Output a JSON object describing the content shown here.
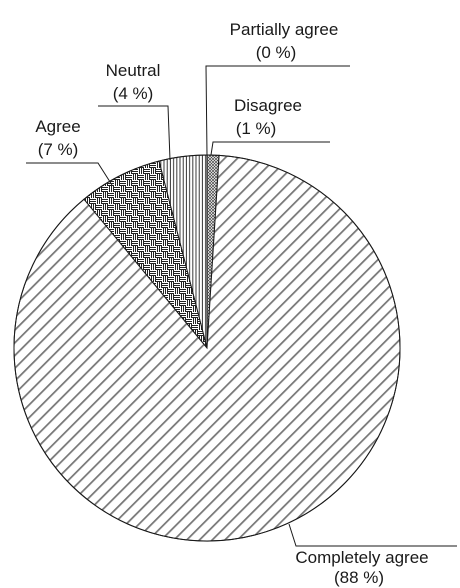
{
  "chart_data": {
    "type": "pie",
    "start": "top",
    "direction": "counterclockwise-from-disagree",
    "slices": [
      {
        "name": "Completely agree",
        "pct_label": "(88 %)",
        "value": 88,
        "pattern": "diagonal"
      },
      {
        "name": "Agree",
        "pct_label": "(7 %)",
        "value": 7,
        "pattern": "basket"
      },
      {
        "name": "Neutral",
        "pct_label": "(4 %)",
        "value": 4,
        "pattern": "vertical"
      },
      {
        "name": "Partially agree",
        "pct_label": "(0 %)",
        "value": 0,
        "pattern": "none"
      },
      {
        "name": "Disagree",
        "pct_label": "(1 %)",
        "value": 1,
        "pattern": "crosshatch"
      }
    ]
  }
}
